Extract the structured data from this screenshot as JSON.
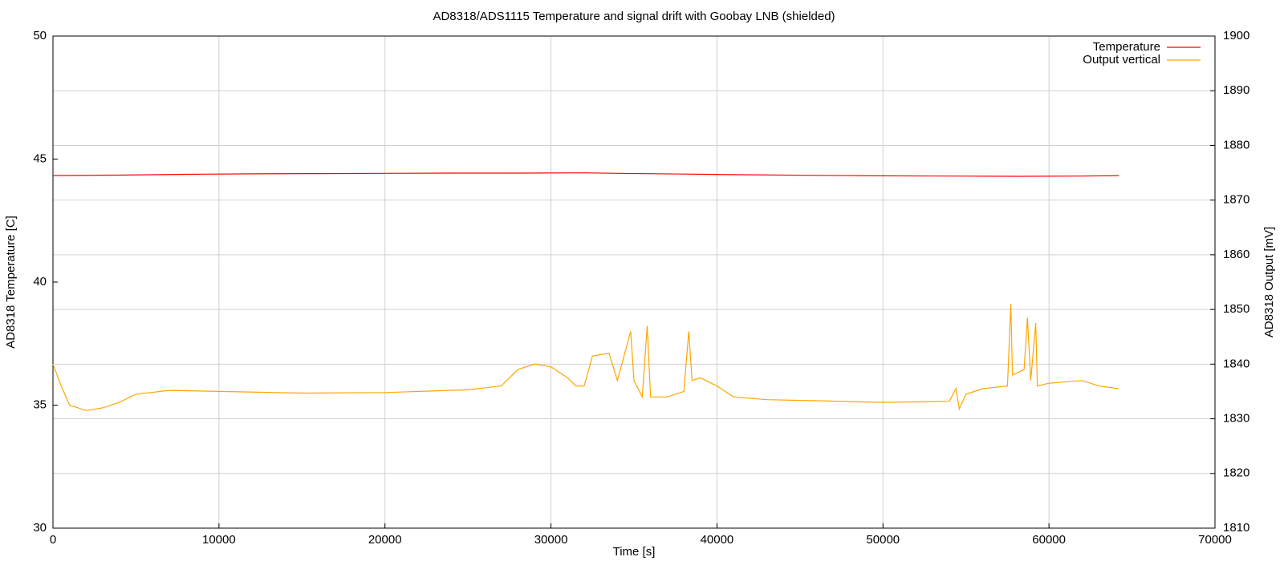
{
  "chart_data": {
    "type": "line",
    "title": "AD8318/ADS1115 Temperature and signal drift with Goobay LNB (shielded)",
    "xlabel": "Time [s]",
    "ylabel": "AD8318 Temperature [C]",
    "y2label": "AD8318 Output [mV]",
    "xlim": [
      0,
      70000
    ],
    "xticks": [
      0,
      10000,
      20000,
      30000,
      40000,
      50000,
      60000,
      70000
    ],
    "ylim": [
      30,
      50
    ],
    "yticks": [
      30,
      35,
      40,
      45,
      50
    ],
    "y2lim": [
      1810,
      1900
    ],
    "y2ticks": [
      1810,
      1820,
      1830,
      1840,
      1850,
      1860,
      1870,
      1880,
      1890,
      1900
    ],
    "grid": true,
    "legend": "top-right",
    "series": [
      {
        "name": "Temperature",
        "color": "#ff0000",
        "axis": "y",
        "x": [
          0,
          4000,
          8000,
          12000,
          16000,
          20000,
          24000,
          28000,
          32000,
          34000,
          38000,
          42000,
          46000,
          50000,
          54000,
          58000,
          62000,
          64200
        ],
        "values": [
          44.33,
          44.35,
          44.38,
          44.4,
          44.41,
          44.42,
          44.43,
          44.43,
          44.44,
          44.42,
          44.39,
          44.36,
          44.34,
          44.32,
          44.31,
          44.3,
          44.31,
          44.33
        ]
      },
      {
        "name": "Output vertical",
        "color": "#ffa500",
        "axis": "y2",
        "x": [
          0,
          500,
          1000,
          2000,
          3000,
          4000,
          5000,
          7000,
          10000,
          15000,
          20000,
          25000,
          27000,
          28000,
          29000,
          30000,
          31000,
          31500,
          32000,
          32500,
          33500,
          34000,
          34800,
          35000,
          35500,
          35800,
          36000,
          37000,
          38000,
          38300,
          38500,
          39000,
          40000,
          41000,
          43000,
          46000,
          50000,
          54000,
          54400,
          54600,
          55000,
          56000,
          57500,
          57700,
          57800,
          58500,
          58700,
          58900,
          59200,
          59300,
          60000,
          62000,
          63000,
          64200
        ],
        "values": [
          1840,
          1836,
          1832.5,
          1831.5,
          1832,
          1833,
          1834.5,
          1835.2,
          1835,
          1834.7,
          1834.8,
          1835.3,
          1836,
          1839,
          1840,
          1839.5,
          1837.5,
          1836,
          1836,
          1841.5,
          1842,
          1837,
          1846,
          1837,
          1834,
          1847,
          1834,
          1834,
          1835,
          1846,
          1837,
          1837.5,
          1836,
          1834,
          1833.5,
          1833.3,
          1833,
          1833.2,
          1835.5,
          1831.8,
          1834.5,
          1835.5,
          1836,
          1851,
          1838,
          1839,
          1848.5,
          1837,
          1847.5,
          1836,
          1836.5,
          1837,
          1836,
          1835.5
        ]
      }
    ]
  }
}
